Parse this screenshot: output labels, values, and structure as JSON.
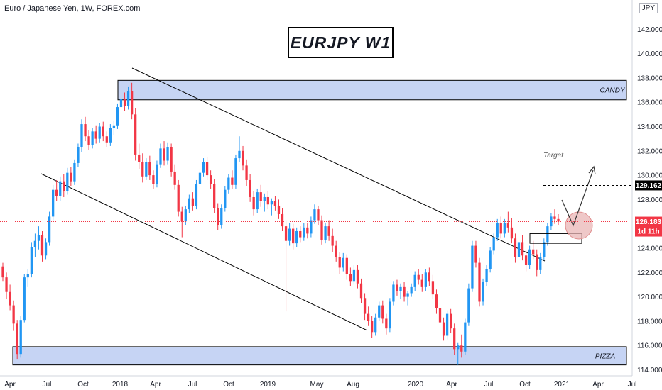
{
  "header": {
    "instrument": "Euro / Japanese Yen, 1W, FOREX.com"
  },
  "title": "EURJPY W1",
  "currency_tag": "JPY",
  "zones": {
    "upper_label": "CANDY",
    "lower_label": "PIZZA"
  },
  "target": {
    "label": "Target",
    "price_tag": "129.162"
  },
  "current_price": {
    "value": "126.183",
    "countdown": "1d 11h"
  },
  "colors": {
    "up": "#2196f3",
    "down": "#f23645",
    "zone_fill": "#c6d4f4",
    "zone_border": "#000000",
    "current_price": "#f23645",
    "target_tag": "#000000",
    "circle": "#e9b6b6"
  },
  "chart_data": {
    "type": "candlestick",
    "title": "EURJPY W1",
    "y_ticks": [
      "114.000",
      "116.000",
      "118.000",
      "120.000",
      "122.000",
      "124.000",
      "126.000",
      "128.000",
      "130.000",
      "132.000",
      "134.000",
      "136.000",
      "138.000",
      "140.000",
      "142.000"
    ],
    "x_ticks": [
      "Apr",
      "Jul",
      "Oct",
      "2018",
      "Apr",
      "Jul",
      "Oct",
      "2019",
      "May",
      "Aug",
      "2020",
      "Apr",
      "Jul",
      "Oct",
      "2021",
      "Apr",
      "Jul"
    ],
    "ylim": [
      113.3,
      143
    ],
    "grid": false,
    "series": [
      {
        "values": [
          [
            122.5,
            122.8,
            121.3,
            121.6
          ],
          [
            121.6,
            122.0,
            119.8,
            120.4
          ],
          [
            120.4,
            121.0,
            118.9,
            119.3
          ],
          [
            119.3,
            119.7,
            117.2,
            117.8
          ],
          [
            117.8,
            118.1,
            114.9,
            115.3
          ],
          [
            115.3,
            118.4,
            115.0,
            118.1
          ],
          [
            118.1,
            121.9,
            117.9,
            121.6
          ],
          [
            121.6,
            122.3,
            120.8,
            121.9
          ],
          [
            121.9,
            124.5,
            121.6,
            124.1
          ],
          [
            124.1,
            125.2,
            123.3,
            124.6
          ],
          [
            124.6,
            125.8,
            123.9,
            125.1
          ],
          [
            125.1,
            125.4,
            122.9,
            123.4
          ],
          [
            123.4,
            124.8,
            123.1,
            124.5
          ],
          [
            124.5,
            127.0,
            124.2,
            126.6
          ],
          [
            126.6,
            129.2,
            126.3,
            128.8
          ],
          [
            128.8,
            129.6,
            127.9,
            128.3
          ],
          [
            128.3,
            129.9,
            127.9,
            129.5
          ],
          [
            129.5,
            130.1,
            128.2,
            128.7
          ],
          [
            128.7,
            130.6,
            128.4,
            130.2
          ],
          [
            130.2,
            130.7,
            129.1,
            129.5
          ],
          [
            129.5,
            131.3,
            129.2,
            131.0
          ],
          [
            131.0,
            132.6,
            130.7,
            132.3
          ],
          [
            132.3,
            134.6,
            131.9,
            134.2
          ],
          [
            134.2,
            134.8,
            132.8,
            133.2
          ],
          [
            133.2,
            133.7,
            132.1,
            132.5
          ],
          [
            132.5,
            133.9,
            132.2,
            133.6
          ],
          [
            133.6,
            134.1,
            132.6,
            133.0
          ],
          [
            133.0,
            134.3,
            132.7,
            134.0
          ],
          [
            134.0,
            134.4,
            132.8,
            133.2
          ],
          [
            133.2,
            133.6,
            132.3,
            132.7
          ],
          [
            132.7,
            134.2,
            132.4,
            133.9
          ],
          [
            133.9,
            134.5,
            133.3,
            134.1
          ],
          [
            134.1,
            135.9,
            133.8,
            135.6
          ],
          [
            135.6,
            136.6,
            135.2,
            136.3
          ],
          [
            136.3,
            136.8,
            135.3,
            135.7
          ],
          [
            135.7,
            137.3,
            135.4,
            136.9
          ],
          [
            136.9,
            137.6,
            134.6,
            135.0
          ],
          [
            135.0,
            135.5,
            131.2,
            131.7
          ],
          [
            131.7,
            132.6,
            130.5,
            131.1
          ],
          [
            131.1,
            131.8,
            129.4,
            129.9
          ],
          [
            129.9,
            131.4,
            129.6,
            131.1
          ],
          [
            131.1,
            131.6,
            129.6,
            130.0
          ],
          [
            130.0,
            130.4,
            128.9,
            129.3
          ],
          [
            129.3,
            131.2,
            129.0,
            130.9
          ],
          [
            130.9,
            132.6,
            130.6,
            132.2
          ],
          [
            132.2,
            132.8,
            130.8,
            131.2
          ],
          [
            131.2,
            132.7,
            130.9,
            132.3
          ],
          [
            132.3,
            132.6,
            129.9,
            130.3
          ],
          [
            130.3,
            130.9,
            128.8,
            129.2
          ],
          [
            129.2,
            129.6,
            126.6,
            127.0
          ],
          [
            127.0,
            127.4,
            124.9,
            126.2
          ],
          [
            126.2,
            127.5,
            125.9,
            127.2
          ],
          [
            127.2,
            128.4,
            126.9,
            128.1
          ],
          [
            128.1,
            128.6,
            127.1,
            127.5
          ],
          [
            127.5,
            129.6,
            127.2,
            129.3
          ],
          [
            129.3,
            130.5,
            129.0,
            130.2
          ],
          [
            130.2,
            131.4,
            129.9,
            131.1
          ],
          [
            131.1,
            131.5,
            129.6,
            130.0
          ],
          [
            130.0,
            130.4,
            128.9,
            129.3
          ],
          [
            129.3,
            129.7,
            126.9,
            127.3
          ],
          [
            127.3,
            127.7,
            125.5,
            125.9
          ],
          [
            125.9,
            127.6,
            125.6,
            127.3
          ],
          [
            127.3,
            129.1,
            127.0,
            128.8
          ],
          [
            128.8,
            130.1,
            128.5,
            129.8
          ],
          [
            129.8,
            130.4,
            128.9,
            129.2
          ],
          [
            129.2,
            131.7,
            128.9,
            131.4
          ],
          [
            131.4,
            133.2,
            131.1,
            132.0
          ],
          [
            132.0,
            132.4,
            130.4,
            130.8
          ],
          [
            130.8,
            131.3,
            129.1,
            129.6
          ],
          [
            129.6,
            130.1,
            127.8,
            128.2
          ],
          [
            128.2,
            128.7,
            126.7,
            127.2
          ],
          [
            127.2,
            128.9,
            126.9,
            128.6
          ],
          [
            128.6,
            129.2,
            127.4,
            127.9
          ],
          [
            127.9,
            128.5,
            127.0,
            128.2
          ],
          [
            128.2,
            128.7,
            127.2,
            127.6
          ],
          [
            127.6,
            128.1,
            126.7,
            127.9
          ],
          [
            127.9,
            128.3,
            127.1,
            127.5
          ],
          [
            127.5,
            128.0,
            126.4,
            126.8
          ],
          [
            126.8,
            127.3,
            125.4,
            125.8
          ],
          [
            125.8,
            126.3,
            118.8,
            124.6
          ],
          [
            124.6,
            126.1,
            124.2,
            125.6
          ],
          [
            125.6,
            126.0,
            123.9,
            124.4
          ],
          [
            124.4,
            125.7,
            124.1,
            125.4
          ],
          [
            125.4,
            125.8,
            124.5,
            124.9
          ],
          [
            124.9,
            126.1,
            124.6,
            125.7
          ],
          [
            125.7,
            126.1,
            124.8,
            125.2
          ],
          [
            125.2,
            126.6,
            124.9,
            126.3
          ],
          [
            126.3,
            127.6,
            126.0,
            127.2
          ],
          [
            127.2,
            127.5,
            125.9,
            126.3
          ],
          [
            126.3,
            126.7,
            124.3,
            124.7
          ],
          [
            124.7,
            126.1,
            124.4,
            125.8
          ],
          [
            125.8,
            126.3,
            124.6,
            125.0
          ],
          [
            125.0,
            125.6,
            123.7,
            124.2
          ],
          [
            124.2,
            124.6,
            122.9,
            123.3
          ],
          [
            123.3,
            123.7,
            121.9,
            122.4
          ],
          [
            122.4,
            123.6,
            122.1,
            123.2
          ],
          [
            123.2,
            123.5,
            121.4,
            121.9
          ],
          [
            121.9,
            122.4,
            120.9,
            121.3
          ],
          [
            121.3,
            122.6,
            121.0,
            122.2
          ],
          [
            122.2,
            122.6,
            120.7,
            121.1
          ],
          [
            121.1,
            121.5,
            119.5,
            119.9
          ],
          [
            119.9,
            120.3,
            118.1,
            118.6
          ],
          [
            118.6,
            119.2,
            117.6,
            118.0
          ],
          [
            118.0,
            118.4,
            116.6,
            117.1
          ],
          [
            117.1,
            118.6,
            116.8,
            118.3
          ],
          [
            118.3,
            119.6,
            118.0,
            119.3
          ],
          [
            119.3,
            119.7,
            117.8,
            118.2
          ],
          [
            118.2,
            118.6,
            116.9,
            117.4
          ],
          [
            117.4,
            119.9,
            117.1,
            119.6
          ],
          [
            119.6,
            121.3,
            119.3,
            121.0
          ],
          [
            121.0,
            121.4,
            120.1,
            120.5
          ],
          [
            120.5,
            121.1,
            119.8,
            120.8
          ],
          [
            120.8,
            121.2,
            119.6,
            120.0
          ],
          [
            120.0,
            120.5,
            119.3,
            120.3
          ],
          [
            120.3,
            121.1,
            120.0,
            120.8
          ],
          [
            120.8,
            122.1,
            120.5,
            121.8
          ],
          [
            121.8,
            122.3,
            121.0,
            121.4
          ],
          [
            121.4,
            121.9,
            120.4,
            120.8
          ],
          [
            120.8,
            122.3,
            120.5,
            122.0
          ],
          [
            122.0,
            122.4,
            120.9,
            121.3
          ],
          [
            121.3,
            121.8,
            119.8,
            120.2
          ],
          [
            120.2,
            120.6,
            118.6,
            119.1
          ],
          [
            119.1,
            119.6,
            117.5,
            117.9
          ],
          [
            117.9,
            118.3,
            116.4,
            116.8
          ],
          [
            116.8,
            118.9,
            116.5,
            118.6
          ],
          [
            118.6,
            119.0,
            117.0,
            117.4
          ],
          [
            117.4,
            117.8,
            115.2,
            115.7
          ],
          [
            115.7,
            116.2,
            114.4,
            116.0
          ],
          [
            116.0,
            116.9,
            115.0,
            115.5
          ],
          [
            115.5,
            118.2,
            115.2,
            117.9
          ],
          [
            117.9,
            121.1,
            117.6,
            120.7
          ],
          [
            120.7,
            124.6,
            120.4,
            124.2
          ],
          [
            124.2,
            124.6,
            122.4,
            122.8
          ],
          [
            122.8,
            123.2,
            119.2,
            119.6
          ],
          [
            119.6,
            121.5,
            119.3,
            121.2
          ],
          [
            121.2,
            122.6,
            120.9,
            122.3
          ],
          [
            122.3,
            124.1,
            122.0,
            123.8
          ],
          [
            123.8,
            125.2,
            123.5,
            124.9
          ],
          [
            124.9,
            126.4,
            124.6,
            126.1
          ],
          [
            126.1,
            126.6,
            124.8,
            125.2
          ],
          [
            125.2,
            126.4,
            124.9,
            126.1
          ],
          [
            126.1,
            127.0,
            125.3,
            125.7
          ],
          [
            125.7,
            126.5,
            124.4,
            124.8
          ],
          [
            124.8,
            125.2,
            122.8,
            123.3
          ],
          [
            123.3,
            124.8,
            123.0,
            124.5
          ],
          [
            124.5,
            125.1,
            123.0,
            123.4
          ],
          [
            123.4,
            123.8,
            122.1,
            122.6
          ],
          [
            122.6,
            124.2,
            122.3,
            123.9
          ],
          [
            123.9,
            124.6,
            123.1,
            123.5
          ],
          [
            123.5,
            123.9,
            121.7,
            122.2
          ],
          [
            122.2,
            123.6,
            121.9,
            123.3
          ],
          [
            123.3,
            124.8,
            123.0,
            124.5
          ],
          [
            124.5,
            126.1,
            124.2,
            125.8
          ],
          [
            125.8,
            126.9,
            125.5,
            126.6
          ],
          [
            126.6,
            127.2,
            126.0,
            126.4
          ],
          [
            126.4,
            126.8,
            125.9,
            126.2
          ]
        ]
      }
    ],
    "annotations": {
      "upper_zone": {
        "label": "CANDY",
        "y_range": [
          136.2,
          137.8
        ]
      },
      "lower_zone": {
        "label": "PIZZA",
        "y_range": [
          114.4,
          115.9
        ]
      },
      "target_level": 129.162,
      "current_level": 126.183,
      "countdown": "1d 11h"
    }
  }
}
